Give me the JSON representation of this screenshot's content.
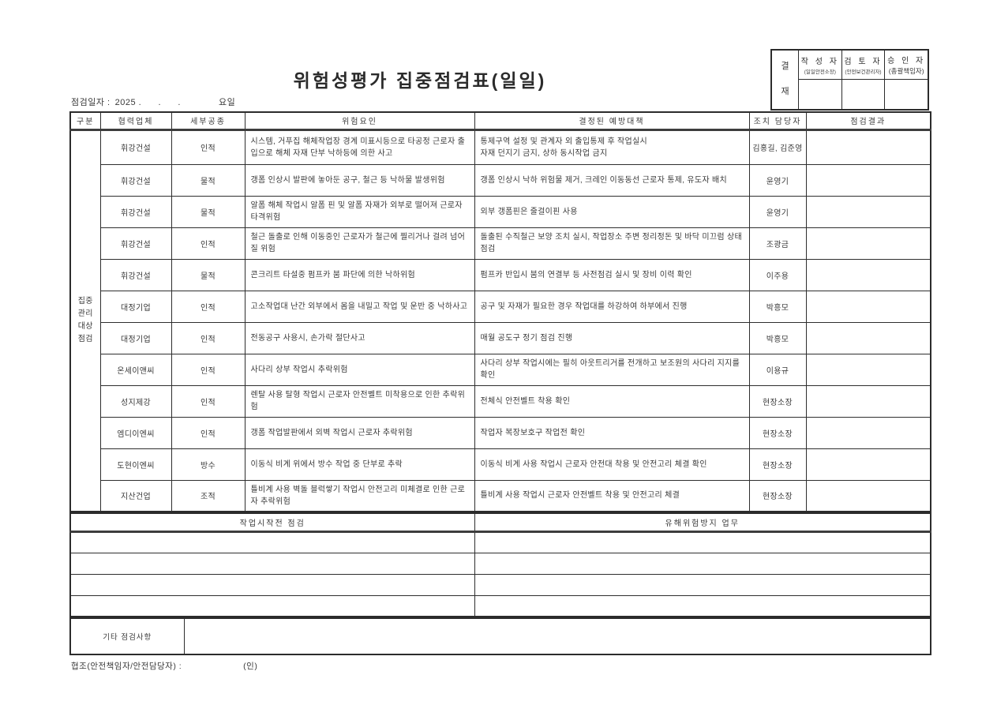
{
  "page": {
    "title": "위험성평가 집중점검표(일일)"
  },
  "date_line": {
    "label": "점검일자 :",
    "value": "2025 .      .      .",
    "weekday": "요일"
  },
  "approval": {
    "stamp": "결\n재",
    "columns": [
      {
        "title": "작 성 자",
        "subtitle": "(일일안전소장)"
      },
      {
        "title": "검 토 자",
        "subtitle": "(안전보건관리자)"
      },
      {
        "title": "승 인 자",
        "subtitle": "(총괄책임자)"
      }
    ]
  },
  "table": {
    "headers": {
      "category": "구분",
      "company": "협력업체",
      "work_type": "세부공종",
      "hazard": "위험요인",
      "prevention": "결정된 예방대책",
      "manager": "조치 담당자",
      "result": "점검결과"
    },
    "group_label": "집중\n관리\n대상\n점검",
    "rows": [
      {
        "company": "휘강건설",
        "work_type": "인적",
        "hazard": "시스템, 거푸집 해체작업장 경계 미표시등으로 타공정 근로자 출입으로 해체 자재 단부 낙하등에 의한 사고",
        "prevention": "통제구역 설정 및 관계자 외 출입통제 후 작업실시\n자재 던지기 금지, 상하 동시작업 금지",
        "manager": "김홍길, 김준영",
        "result": ""
      },
      {
        "company": "휘강건설",
        "work_type": "물적",
        "hazard": "갱폼 인상시 발판에 놓아둔 공구, 철근 등 낙하물 발생위험",
        "prevention": "갱폼 인상시 낙하 위험물 제거, 크레인 이동동선 근로자 통제, 유도자 배치",
        "manager": "윤영기",
        "result": ""
      },
      {
        "company": "휘강건설",
        "work_type": "물적",
        "hazard": "알폼 해체 작업시 알폼 핀 및 알폼 자재가 외부로 떨어져 근로자 타격위험",
        "prevention": "외부 갱폼핀은 줄걸이핀 사용",
        "manager": "윤영기",
        "result": ""
      },
      {
        "company": "휘강건설",
        "work_type": "인적",
        "hazard": "철근 돌출로 인해 이동중인 근로자가 철근에 찔리거나 걸려 넘어질 위험",
        "prevention": "돌출된 수직철근 보양 조치 실시, 작업장소 주변 정리정돈 및 바닥 미끄럼 상태 점검",
        "manager": "조광금",
        "result": ""
      },
      {
        "company": "휘강건설",
        "work_type": "물적",
        "hazard": "콘크리트 타설중 펌프카 붐 파단에 의한 낙하위험",
        "prevention": "펌프카 반입시 붐의 연결부 등 사전점검 실시 및 장비 이력 확인",
        "manager": "이주용",
        "result": ""
      },
      {
        "company": "대정기업",
        "work_type": "인적",
        "hazard": "고소작업대 난간 외부에서 몸을 내밀고 작업 및 운반 중 낙하사고",
        "prevention": "공구 및 자재가 필요한 경우 작업대를 하강하여 하부에서 진행",
        "manager": "박흥모",
        "result": ""
      },
      {
        "company": "대정기업",
        "work_type": "인적",
        "hazard": "전동공구 사용시, 손가락 절단사고",
        "prevention": "매월 공도구 정기 점검 진행",
        "manager": "박흥모",
        "result": ""
      },
      {
        "company": "온세이앤씨",
        "work_type": "인적",
        "hazard": "사다리 상부 작업시 추락위험",
        "prevention": "사다리 상부 작업시에는 필히 아웃트리거를 전개하고 보조원의 사다리 지지를 확인",
        "manager": "이용규",
        "result": ""
      },
      {
        "company": "성지제강",
        "work_type": "인적",
        "hazard": "렌탈 사용 탈형 작업시 근로자 안전벨트 미착용으로 인한 추락위험",
        "prevention": "전체식 안전벨트 착용 확인",
        "manager": "현장소장",
        "result": ""
      },
      {
        "company": "엠디이엔씨",
        "work_type": "인적",
        "hazard": "갱폼 작업발판에서 외벽 작업시 근로자 추락위험",
        "prevention": "작업자 복장보호구 작업전 확인",
        "manager": "현장소장",
        "result": ""
      },
      {
        "company": "도현이엔씨",
        "work_type": "방수",
        "hazard": "이동식 비계 위에서 방수 작업 중 단부로 추락",
        "prevention": "이동식 비계 사용 작업시 근로자 안전대 착용 및 안전고리 체결 확인",
        "manager": "현장소장",
        "result": ""
      },
      {
        "company": "지산건업",
        "work_type": "조적",
        "hazard": "틀비계 사용 벽돌 블럭쌓기 작업시 안전고리 미체결로 인한 근로자 추락위험",
        "prevention": "틀비계 사용 작업시 근로자 안전벨트 착용 및 안전고리 체결",
        "manager": "현장소장",
        "result": ""
      }
    ]
  },
  "pre_work_section": {
    "left_header": "작업시작전 점검",
    "right_header": "유해위험방지 업무",
    "empty_row_count": 4
  },
  "etc_section": {
    "label": "기타 점검사항",
    "content": ""
  },
  "footer": {
    "cooperation_label": "협조(안전책임자/안전담당자) :",
    "seal_label": "(인)"
  }
}
